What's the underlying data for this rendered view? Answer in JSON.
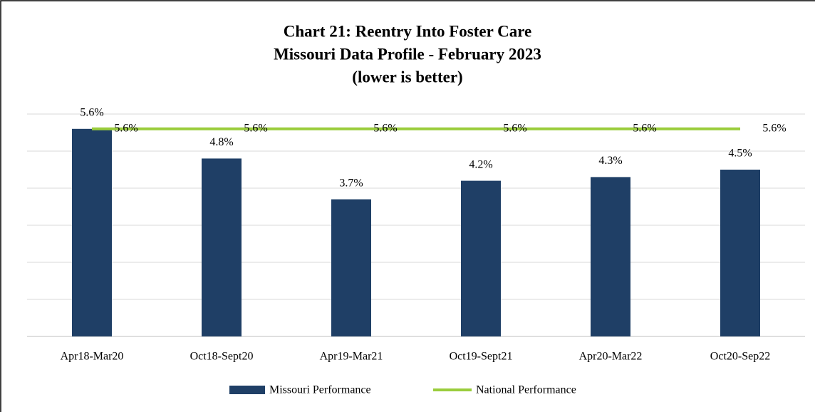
{
  "chart_data": {
    "type": "bar",
    "title": [
      "Chart 21: Reentry Into Foster Care",
      "Missouri Data Profile - February 2023",
      "(lower is better)"
    ],
    "categories": [
      "Apr18-Mar20",
      "Oct18-Sept20",
      "Apr19-Mar21",
      "Oct19-Sept21",
      "Apr20-Mar22",
      "Oct20-Sep22"
    ],
    "series": [
      {
        "name": "Missouri Performance",
        "type": "bar",
        "color": "#1f3f66",
        "values": [
          5.6,
          4.8,
          3.7,
          4.2,
          4.3,
          4.5
        ],
        "value_labels": [
          "5.6%",
          "4.8%",
          "3.7%",
          "4.2%",
          "4.3%",
          "4.5%"
        ]
      },
      {
        "name": "National Performance",
        "type": "line",
        "color": "#9acd3c",
        "values": [
          5.6,
          5.6,
          5.6,
          5.6,
          5.6,
          5.6
        ],
        "value_labels": [
          "5.6%",
          "5.6%",
          "5.6%",
          "5.6%",
          "5.6%",
          "5.6%"
        ]
      }
    ],
    "ylim": [
      0,
      6
    ],
    "yticks": [
      0,
      1,
      2,
      3,
      4,
      5,
      6
    ],
    "grid": true,
    "legend": "bottom"
  }
}
